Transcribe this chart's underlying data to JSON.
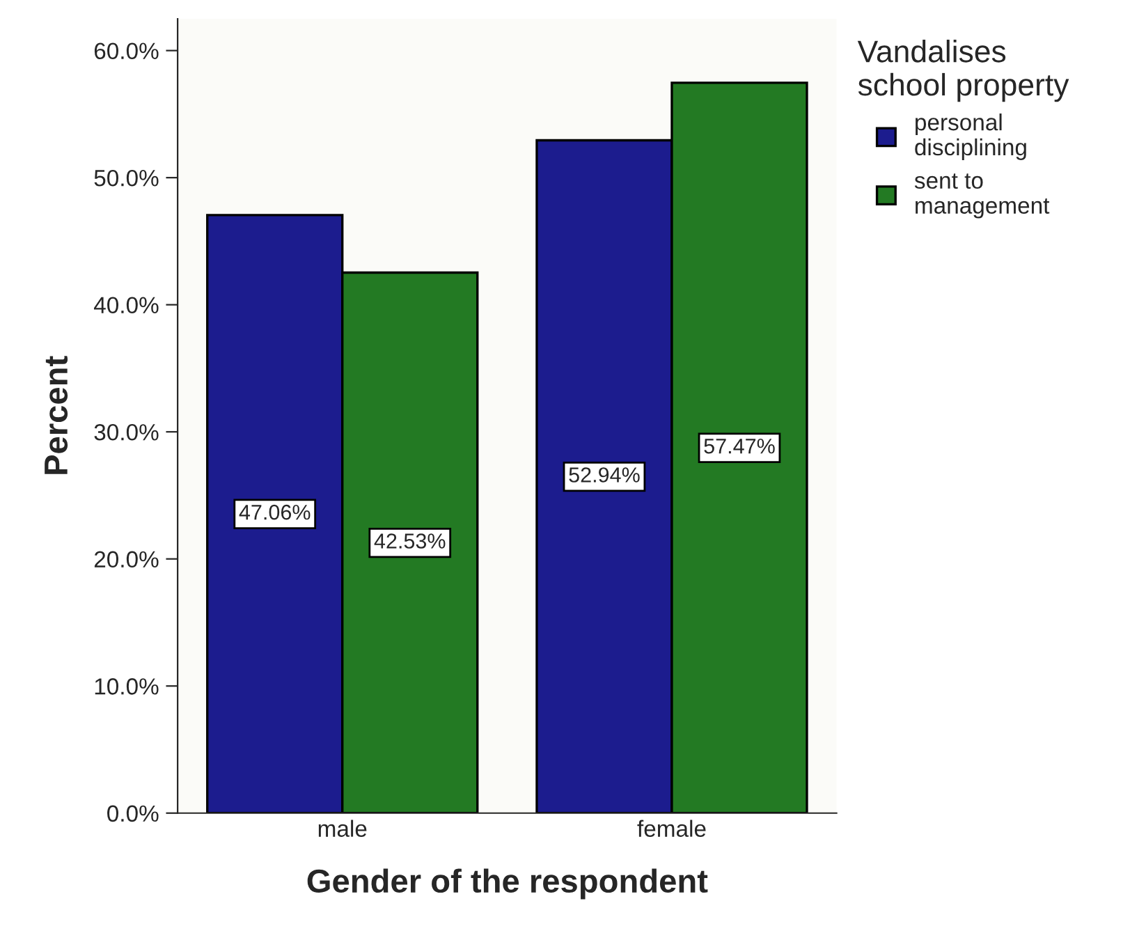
{
  "chart_data": {
    "type": "bar",
    "xlabel": "Gender of the respondent",
    "ylabel": "Percent",
    "legend_title": "Vandalises\nschool property",
    "categories": [
      "male",
      "female"
    ],
    "series": [
      {
        "name": "personal\ndisciplining",
        "color": "#1c1c8e",
        "values": [
          47.06,
          52.94
        ],
        "value_labels": [
          "47.06%",
          "52.94%"
        ]
      },
      {
        "name": "sent to\nmanagement",
        "color": "#237a23",
        "values": [
          42.53,
          57.47
        ],
        "value_labels": [
          "42.53%",
          "57.47%"
        ]
      }
    ],
    "ylim": [
      0,
      62.5
    ],
    "yticks": [
      {
        "value": 0,
        "label": "0.0%"
      },
      {
        "value": 10,
        "label": "10.0%"
      },
      {
        "value": 20,
        "label": "20.0%"
      },
      {
        "value": 30,
        "label": "30.0%"
      },
      {
        "value": 40,
        "label": "40.0%"
      },
      {
        "value": 50,
        "label": "50.0%"
      },
      {
        "value": 60,
        "label": "60.0%"
      }
    ],
    "legend": "top right",
    "grid": false
  }
}
